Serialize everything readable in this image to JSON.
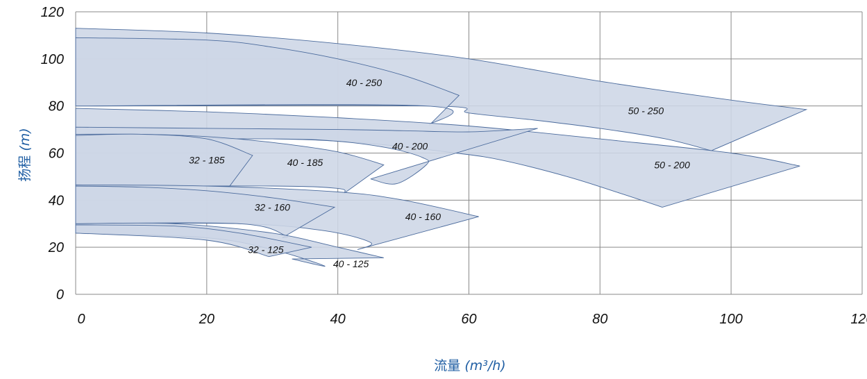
{
  "chart_data": {
    "type": "area",
    "title": "",
    "xlabel": "流量",
    "xlabel_unit": "(m³/h)",
    "ylabel": "扬程",
    "ylabel_unit": "(m)",
    "xlim": [
      0,
      120
    ],
    "ylim": [
      0,
      120
    ],
    "x_ticks": [
      "0",
      "20",
      "40",
      "60",
      "80",
      "100",
      "120"
    ],
    "y_ticks": [
      "0",
      "20",
      "40",
      "60",
      "80",
      "100",
      "120"
    ],
    "grid": true,
    "fill_color": "#cdd6e6",
    "edge_color": "#4a6a9c",
    "label_color": "#1f5ea3",
    "series": [
      {
        "name": "50 - 250",
        "label_at": [
          87,
          78
        ],
        "upper": [
          [
            0,
            113
          ],
          [
            20,
            111
          ],
          [
            40,
            106.5
          ],
          [
            60,
            100
          ],
          [
            80,
            90.5
          ],
          [
            100,
            82.5
          ],
          [
            111.5,
            78.5
          ]
        ],
        "lower": [
          [
            0,
            80
          ],
          [
            54,
            80
          ],
          [
            60,
            77
          ],
          [
            70,
            74
          ],
          [
            80,
            70.5
          ],
          [
            90,
            66
          ],
          [
            97,
            61
          ]
        ]
      },
      {
        "name": "40 - 250",
        "label_at": [
          44,
          90
        ],
        "upper": [
          [
            0,
            109
          ],
          [
            20,
            108
          ],
          [
            30,
            105
          ],
          [
            40,
            100
          ],
          [
            50,
            93
          ],
          [
            58.5,
            84.5
          ]
        ],
        "lower": [
          [
            0,
            80
          ],
          [
            53.5,
            80
          ],
          [
            54,
            72
          ]
        ]
      },
      {
        "name": "50 - 200",
        "label_at": [
          91,
          55
        ],
        "upper": [
          [
            0,
            79
          ],
          [
            20,
            77.5
          ],
          [
            40,
            75
          ],
          [
            60,
            71.5
          ],
          [
            80,
            66
          ],
          [
            100,
            60
          ],
          [
            110.5,
            54.5
          ]
        ],
        "lower": [
          [
            0,
            66
          ],
          [
            30,
            66
          ],
          [
            45,
            64
          ],
          [
            58,
            60
          ],
          [
            65,
            57
          ],
          [
            75,
            50
          ],
          [
            83,
            43
          ],
          [
            89.5,
            37
          ]
        ]
      },
      {
        "name": "40 - 200",
        "label_at": [
          51,
          63
        ],
        "upper": [
          [
            0,
            71
          ],
          [
            20,
            70.5
          ],
          [
            40,
            70
          ],
          [
            50,
            69.5
          ],
          [
            60,
            69
          ],
          [
            70.5,
            70.5
          ]
        ],
        "lower": [
          [
            0,
            66
          ],
          [
            30,
            66
          ],
          [
            40,
            65
          ],
          [
            48,
            62
          ],
          [
            53,
            58
          ],
          [
            53.5,
            55
          ],
          [
            49,
            47
          ],
          [
            45,
            49
          ]
        ]
      },
      {
        "name": "40 - 185",
        "label_at": [
          35,
          56
        ],
        "upper": [
          [
            0,
            68
          ],
          [
            10,
            68
          ],
          [
            20,
            67
          ],
          [
            30,
            64.5
          ],
          [
            40,
            60.5
          ],
          [
            47,
            55
          ]
        ],
        "lower": [
          [
            0,
            46
          ],
          [
            30,
            46
          ],
          [
            40,
            45
          ],
          [
            41,
            43
          ]
        ]
      },
      {
        "name": "32 - 185",
        "label_at": [
          20,
          57
        ],
        "upper": [
          [
            0,
            67.5
          ],
          [
            10,
            68
          ],
          [
            20,
            66
          ],
          [
            27,
            59
          ]
        ],
        "lower": [
          [
            0,
            46
          ],
          [
            23.5,
            46
          ]
        ]
      },
      {
        "name": "40 - 160",
        "label_at": [
          53,
          33
        ],
        "upper": [
          [
            0,
            46.5
          ],
          [
            20,
            46
          ],
          [
            40,
            43.5
          ],
          [
            50,
            40
          ],
          [
            61.5,
            33
          ]
        ],
        "lower": [
          [
            0,
            30
          ],
          [
            25,
            30
          ],
          [
            38,
            27
          ],
          [
            45,
            22
          ],
          [
            43,
            19
          ]
        ]
      },
      {
        "name": "32 - 160",
        "label_at": [
          30,
          37
        ],
        "upper": [
          [
            0,
            46
          ],
          [
            10,
            45.5
          ],
          [
            20,
            44
          ],
          [
            30,
            41
          ],
          [
            39.5,
            37
          ]
        ],
        "lower": [
          [
            0,
            30
          ],
          [
            25,
            30
          ],
          [
            32,
            25
          ],
          [
            31.5,
            24
          ]
        ]
      },
      {
        "name": "40 - 125",
        "label_at": [
          42,
          13
        ],
        "upper": [
          [
            0,
            30
          ],
          [
            15,
            30
          ],
          [
            30,
            26
          ],
          [
            40,
            20
          ],
          [
            47,
            15.5
          ]
        ],
        "lower": [
          [
            0,
            26
          ],
          [
            20,
            24
          ],
          [
            30,
            19
          ],
          [
            38,
            12
          ],
          [
            33,
            15
          ]
        ]
      },
      {
        "name": "32 - 125",
        "label_at": [
          29,
          19
        ],
        "upper": [
          [
            0,
            29.5
          ],
          [
            15,
            29
          ],
          [
            25,
            26
          ],
          [
            36,
            20
          ]
        ],
        "lower": [
          [
            0,
            26
          ],
          [
            20,
            23
          ],
          [
            29.5,
            16
          ]
        ]
      }
    ]
  }
}
